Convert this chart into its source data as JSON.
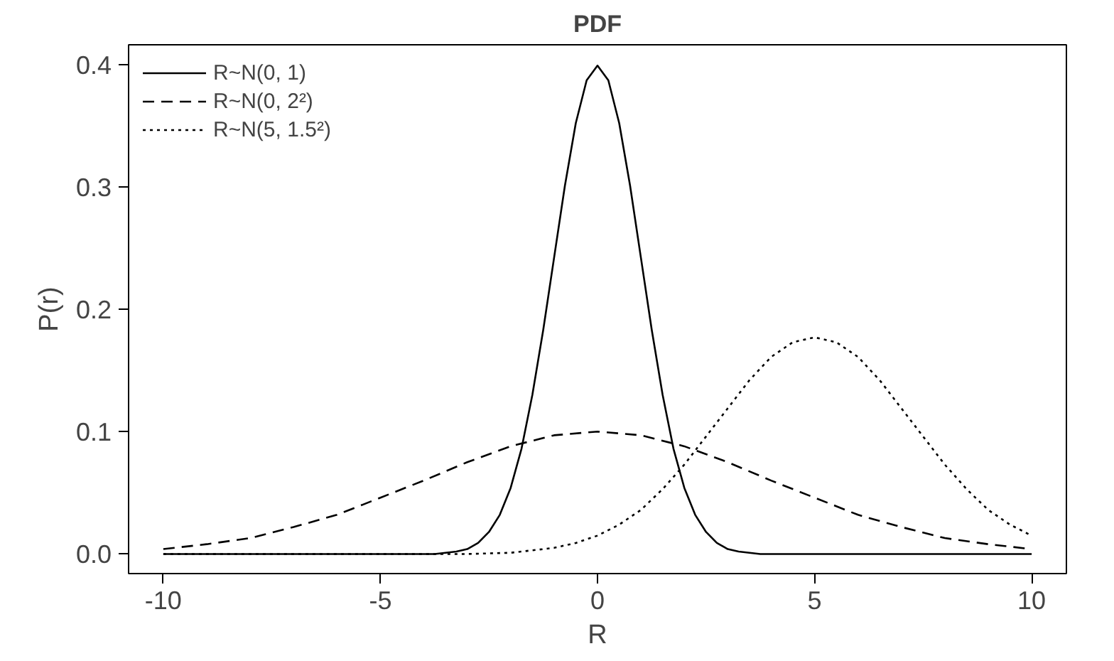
{
  "chart_data": {
    "type": "line",
    "title": "PDF",
    "xlabel": "R",
    "ylabel": "P(r)",
    "xlim": [
      -10.8,
      10.8
    ],
    "ylim": [
      -0.016,
      0.416
    ],
    "xticks": [
      -10,
      -5,
      0,
      5,
      10
    ],
    "yticks": [
      {
        "value": 0,
        "label": "0.0"
      },
      0.1,
      0.2,
      0.3,
      0.4
    ],
    "grid": false,
    "legend": "top left",
    "marker": "none",
    "series": [
      {
        "name": "R~N(0, 1)",
        "color": "#000000",
        "line_style": "solid",
        "x": [
          -10,
          -4,
          -3.75,
          -3.5,
          -3.25,
          -3,
          -2.75,
          -2.5,
          -2.25,
          -2,
          -1.75,
          -1.5,
          -1.25,
          -1,
          -0.75,
          -0.5,
          -0.25,
          0,
          0.25,
          0.5,
          0.75,
          1,
          1.25,
          1.5,
          1.75,
          2,
          2.25,
          2.5,
          2.75,
          3,
          3.25,
          3.5,
          3.75,
          4,
          10
        ],
        "values": [
          0,
          0,
          0,
          0.001,
          0.002,
          0.004,
          0.009,
          0.018,
          0.032,
          0.054,
          0.086,
          0.13,
          0.183,
          0.242,
          0.301,
          0.352,
          0.387,
          0.399,
          0.387,
          0.352,
          0.301,
          0.242,
          0.183,
          0.13,
          0.086,
          0.054,
          0.032,
          0.018,
          0.009,
          0.004,
          0.002,
          0.001,
          0,
          0,
          0
        ]
      },
      {
        "name": "R~N(0, 2²)",
        "color": "#000000",
        "line_style": "dashed",
        "x": [
          -10,
          -9,
          -8,
          -7,
          -6,
          -5,
          -4,
          -3,
          -2,
          -1,
          0,
          1,
          2,
          3,
          4,
          5,
          6,
          7,
          8,
          9,
          10
        ],
        "values": [
          0.004,
          0.008,
          0.013,
          0.022,
          0.032,
          0.046,
          0.06,
          0.075,
          0.088,
          0.097,
          0.1,
          0.097,
          0.088,
          0.075,
          0.06,
          0.046,
          0.032,
          0.022,
          0.013,
          0.008,
          0.004
        ]
      },
      {
        "name": "R~N(5, 1.5²)",
        "color": "#000000",
        "line_style": "dotted",
        "x": [
          -10,
          -3,
          -2,
          -1,
          -0.5,
          0,
          0.5,
          1,
          1.5,
          2,
          2.5,
          3,
          3.5,
          4,
          4.5,
          5,
          5.5,
          6,
          6.5,
          7,
          7.5,
          8,
          8.5,
          9,
          9.5,
          10
        ],
        "values": [
          0,
          0,
          0.001,
          0.005,
          0.009,
          0.015,
          0.024,
          0.036,
          0.053,
          0.073,
          0.096,
          0.119,
          0.142,
          0.161,
          0.173,
          0.177,
          0.173,
          0.161,
          0.142,
          0.119,
          0.096,
          0.073,
          0.053,
          0.036,
          0.024,
          0.015
        ]
      }
    ]
  }
}
